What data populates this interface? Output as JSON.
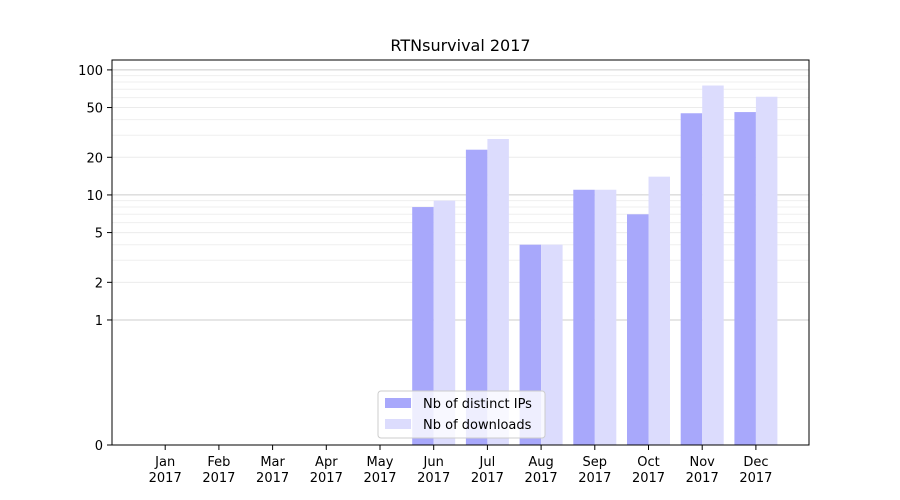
{
  "chart_data": {
    "type": "bar",
    "title": "RTNsurvival 2017",
    "xlabel": "",
    "ylabel": "",
    "yscale": "symlog",
    "ylim": [
      0,
      120
    ],
    "grid": true,
    "legend_position": "lower center",
    "categories": [
      [
        "Jan",
        "2017"
      ],
      [
        "Feb",
        "2017"
      ],
      [
        "Mar",
        "2017"
      ],
      [
        "Apr",
        "2017"
      ],
      [
        "May",
        "2017"
      ],
      [
        "Jun",
        "2017"
      ],
      [
        "Jul",
        "2017"
      ],
      [
        "Aug",
        "2017"
      ],
      [
        "Sep",
        "2017"
      ],
      [
        "Oct",
        "2017"
      ],
      [
        "Nov",
        "2017"
      ],
      [
        "Dec",
        "2017"
      ]
    ],
    "yticks": [
      0,
      1,
      2,
      5,
      10,
      20,
      50,
      100
    ],
    "series": [
      {
        "name": "Nb of distinct IPs",
        "color": "#a8a8fb",
        "values": [
          0,
          0,
          0,
          0,
          0,
          8,
          23,
          4,
          11,
          7,
          45,
          46
        ]
      },
      {
        "name": "Nb of downloads",
        "color": "#dcdcfd",
        "values": [
          0,
          0,
          0,
          0,
          0,
          9,
          28,
          4,
          11,
          14,
          75,
          61
        ]
      }
    ]
  }
}
